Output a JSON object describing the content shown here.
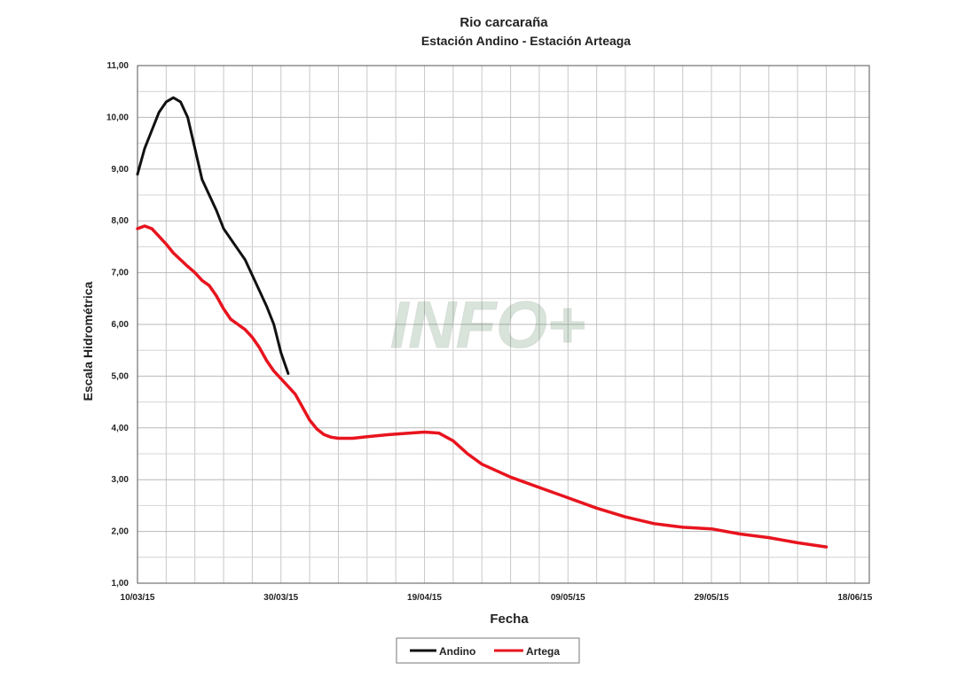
{
  "chart_data": {
    "type": "line",
    "title": "Rio carcaraña",
    "subtitle": "Estación Andino - Estación Arteaga",
    "xlabel": "Fecha",
    "ylabel": "Escala Hidrométrica",
    "x_tick_labels": [
      "10/03/15",
      "30/03/15",
      "19/04/15",
      "09/05/15",
      "29/05/15",
      "18/06/15"
    ],
    "x_tick_values": [
      0,
      20,
      40,
      60,
      80,
      100
    ],
    "y_tick_labels": [
      "1,00",
      "2,00",
      "3,00",
      "4,00",
      "5,00",
      "6,00",
      "7,00",
      "8,00",
      "9,00",
      "10,00",
      "11,00"
    ],
    "xlim": [
      0,
      102
    ],
    "ylim": [
      1,
      11
    ],
    "grid": true,
    "legend_position": "bottom-center",
    "watermark": "INFO+",
    "series": [
      {
        "name": "Andino",
        "color": "#111111",
        "x": [
          0,
          1,
          2,
          3,
          4,
          5,
          6,
          7,
          8,
          9,
          10,
          11,
          12,
          13,
          14,
          15,
          16,
          17,
          18,
          19,
          20,
          21
        ],
        "y": [
          8.9,
          9.4,
          9.75,
          10.1,
          10.3,
          10.38,
          10.3,
          10.0,
          9.4,
          8.8,
          8.5,
          8.2,
          7.85,
          7.65,
          7.45,
          7.25,
          6.95,
          6.65,
          6.35,
          6.0,
          5.45,
          5.05
        ]
      },
      {
        "name": "Artega",
        "color": "#e8141e",
        "x": [
          0,
          1,
          2,
          3,
          4,
          5,
          6,
          7,
          8,
          9,
          10,
          11,
          12,
          13,
          14,
          15,
          16,
          17,
          18,
          19,
          20,
          21,
          22,
          23,
          24,
          25,
          26,
          27,
          28,
          30,
          32,
          35,
          38,
          40,
          42,
          44,
          46,
          48,
          52,
          56,
          60,
          64,
          68,
          72,
          76,
          80,
          84,
          88,
          92,
          96
        ],
        "y": [
          7.85,
          7.9,
          7.85,
          7.7,
          7.55,
          7.38,
          7.25,
          7.12,
          7.0,
          6.85,
          6.75,
          6.55,
          6.3,
          6.1,
          6.0,
          5.9,
          5.75,
          5.55,
          5.3,
          5.1,
          4.95,
          4.8,
          4.65,
          4.4,
          4.15,
          3.98,
          3.87,
          3.82,
          3.8,
          3.8,
          3.83,
          3.87,
          3.9,
          3.92,
          3.9,
          3.75,
          3.5,
          3.3,
          3.05,
          2.85,
          2.65,
          2.45,
          2.28,
          2.15,
          2.08,
          2.05,
          1.95,
          1.88,
          1.78,
          1.7
        ]
      }
    ]
  }
}
